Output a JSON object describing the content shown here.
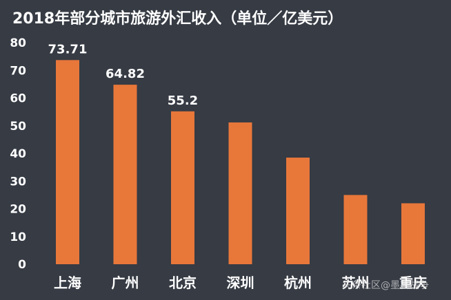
{
  "chart_data": {
    "type": "bar",
    "title": "2018年部分城市旅游外汇收入（单位／亿美元）",
    "categories": [
      "上海",
      "广州",
      "北京",
      "深圳",
      "杭州",
      "苏州",
      "重庆"
    ],
    "values": [
      73.71,
      64.82,
      55.2,
      51.2,
      38.5,
      25.0,
      22.0
    ],
    "data_labels": [
      "73.71",
      "64.82",
      "55.2",
      "",
      "",
      "",
      ""
    ],
    "ylim": [
      0,
      80
    ],
    "yticks": [
      "0",
      "10",
      "20",
      "30",
      "40",
      "50",
      "60",
      "70",
      "80"
    ],
    "xlabel": "",
    "ylabel": "",
    "grid": false,
    "bar_color": "#e8773a",
    "background_color": "#363b44"
  },
  "watermark": "头条社区@墨言战争"
}
